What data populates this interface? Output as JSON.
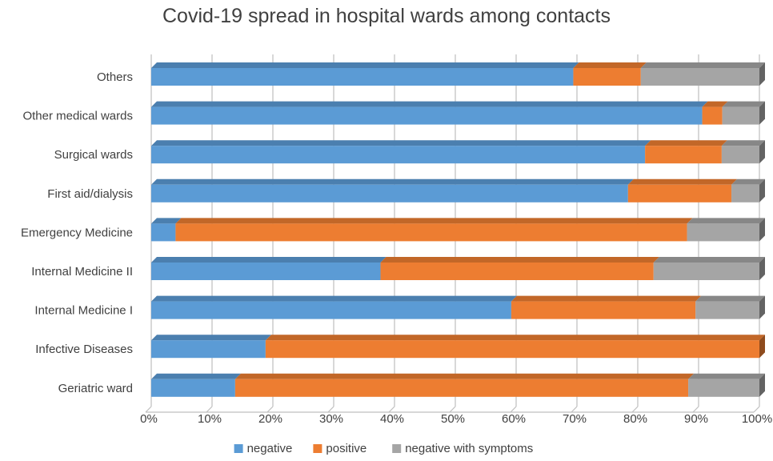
{
  "colors": {
    "negative": "#5b9bd5",
    "positive": "#ed7d31",
    "negative_with_symptoms": "#a5a5a5",
    "grid": "#bfbfbf",
    "text": "#404040"
  },
  "chart_data": {
    "type": "bar",
    "orientation": "horizontal",
    "stacked": "percent",
    "title": "Covid-19 spread in hospital wards among contacts",
    "xlabel": "",
    "ylabel": "",
    "xlim": [
      0,
      100
    ],
    "x_ticks": [
      "0%",
      "10%",
      "20%",
      "30%",
      "40%",
      "50%",
      "60%",
      "70%",
      "80%",
      "90%",
      "100%"
    ],
    "grid": true,
    "legend_position": "bottom",
    "categories": [
      "Geriatric ward",
      "Infective Diseases",
      "Internal Medicine I",
      "Internal Medicine II",
      "Emergency Medicine",
      "First aid/dialysis",
      "Surgical wards",
      "Other medical wards",
      "Others"
    ],
    "series": [
      {
        "name": "negative",
        "color_key": "negative",
        "values": [
          13.8,
          18.8,
          59.2,
          37.7,
          4.0,
          78.4,
          81.2,
          90.6,
          69.4
        ]
      },
      {
        "name": "positive",
        "color_key": "positive",
        "values": [
          74.5,
          81.2,
          30.3,
          44.9,
          84.1,
          17.0,
          12.6,
          3.3,
          11.1
        ]
      },
      {
        "name": "negative with symptoms",
        "color_key": "negative_with_symptoms",
        "values": [
          11.7,
          0.0,
          10.5,
          17.4,
          11.9,
          4.6,
          6.2,
          6.1,
          19.5
        ]
      }
    ]
  }
}
